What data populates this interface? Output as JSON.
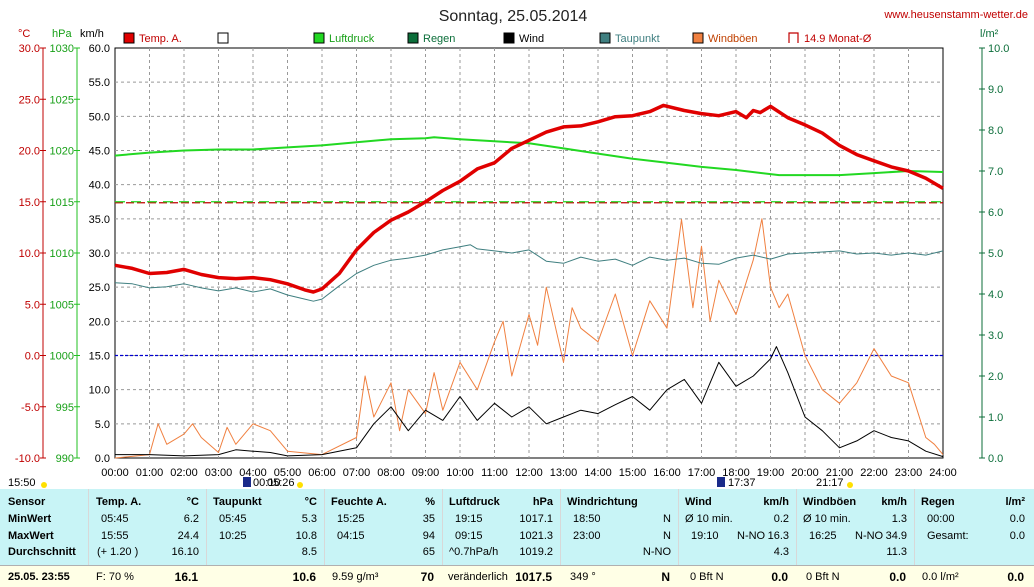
{
  "header": {
    "title": "Sonntag, 25.05.2014",
    "site": "www.heusenstamm-wetter.de"
  },
  "axes": {
    "left_units": [
      "°C",
      "hPa",
      "km/h"
    ],
    "right_unit": "l/m²",
    "temp_ticks": [
      "30.0",
      "25.0",
      "20.0",
      "15.0",
      "10.0",
      "5.0",
      "0.0",
      "-5.0",
      "-10.0"
    ],
    "pressure_ticks": [
      "1030",
      "1025",
      "1020",
      "1015",
      "1010",
      "1005",
      "1000",
      "995",
      "990"
    ],
    "wind_ticks": [
      "60.0",
      "55.0",
      "50.0",
      "45.0",
      "40.0",
      "35.0",
      "30.0",
      "25.0",
      "20.0",
      "15.0",
      "10.0",
      "5.0",
      "0.0"
    ],
    "rain_ticks": [
      "10.0",
      "9.0",
      "8.0",
      "7.0",
      "6.0",
      "5.0",
      "4.0",
      "3.0",
      "2.0",
      "1.0",
      "0.0"
    ],
    "time_ticks": [
      "00:00",
      "01:00",
      "02:00",
      "03:00",
      "04:00",
      "05:00",
      "06:00",
      "07:00",
      "08:00",
      "09:00",
      "10:00",
      "11:00",
      "12:00",
      "13:00",
      "14:00",
      "15:00",
      "16:00",
      "17:00",
      "18:00",
      "19:00",
      "20:00",
      "21:00",
      "22:00",
      "23:00",
      "24:00"
    ]
  },
  "legend": [
    {
      "label": "Temp. A.",
      "color": "#e00000",
      "shape": "box"
    },
    {
      "label": "",
      "color": "#ffffff",
      "shape": "box"
    },
    {
      "label": "Luftdruck",
      "color": "#22d822",
      "shape": "box"
    },
    {
      "label": "Regen",
      "color": "#0c6e3a",
      "shape": "box"
    },
    {
      "label": "Wind",
      "color": "#000000",
      "shape": "box"
    },
    {
      "label": "Taupunkt",
      "color": "#3f7f80",
      "shape": "box"
    },
    {
      "label": "Windböen",
      "color": "#f08040",
      "shape": "box"
    },
    {
      "label": "14.9 Monat-Ø",
      "color": "#c00000",
      "shape": "bracket"
    }
  ],
  "infobar": {
    "sunrise": "15:50",
    "moon_rise": "00:10",
    "moon_set": "05:26",
    "sunset_a": "17:37",
    "sunset_b": "21:17"
  },
  "stats": {
    "sensor": {
      "header": "Sensor",
      "rows": [
        "MinWert",
        "MaxWert",
        "Durchschnitt"
      ],
      "footer": "25.05. 23:55"
    },
    "temp": {
      "header": "Temp. A.",
      "unit": "°C",
      "min_time": "05:45",
      "min": "6.2",
      "max_time": "15:55",
      "max": "24.4",
      "avg_note": "(+ 1.20 )",
      "avg": "16.10",
      "current_note": "F: 70 %",
      "current": "16.1"
    },
    "dew": {
      "header": "Taupunkt",
      "unit": "°C",
      "min_time": "05:45",
      "min": "5.3",
      "max_time": "10:25",
      "max": "10.8",
      "avg": "8.5",
      "current": "10.6"
    },
    "humidity": {
      "header": "Feuchte A.",
      "unit": "%",
      "min_time": "15:25",
      "min": "35",
      "max_time": "04:15",
      "max": "94",
      "avg": "65",
      "current_note": "9.59 g/m³",
      "current": "70"
    },
    "pressure": {
      "header": "Luftdruck",
      "unit": "hPa",
      "min_time": "19:15",
      "min": "1017.1",
      "max_time": "09:15",
      "max": "1021.3",
      "avg_note": "^0.7hPa/h",
      "avg": "1019.2",
      "current_note": "veränderlich",
      "current": "1017.5"
    },
    "winddir": {
      "header": "Windrichtung",
      "min_time": "18:50",
      "min": "N",
      "max_time": "23:00",
      "max": "N",
      "avg": "N-NO",
      "current_note": "349 °",
      "current": "N"
    },
    "wind": {
      "header": "Wind",
      "unit": "km/h",
      "min_note": "Ø 10 min.",
      "min": "0.2",
      "max_time": "19:10",
      "max_dir": "N-NO",
      "max": "16.3",
      "avg": "4.3",
      "current_note": "0 Bft N",
      "current": "0.0"
    },
    "gust": {
      "header": "Windböen",
      "unit": "km/h",
      "min_note": "Ø 10 min.",
      "min": "1.3",
      "max_time": "16:25",
      "max_dir": "N-NO",
      "max": "34.9",
      "avg": "11.3",
      "current_note": "0 Bft N",
      "current": "0.0"
    },
    "rain": {
      "header": "Regen",
      "unit": "l/m²",
      "min_time": "00:00",
      "min": "0.0",
      "max_label": "Gesamt:",
      "max": "0.0",
      "current_note": "0.0 l/m²",
      "current": "0.0"
    }
  },
  "chart_data": {
    "type": "line",
    "title": "Sonntag, 25.05.2014",
    "x_unit": "hour of day",
    "xlim": [
      0,
      24
    ],
    "axes": {
      "temperature": {
        "unit": "°C",
        "range": [
          -10,
          30
        ]
      },
      "pressure": {
        "unit": "hPa",
        "range": [
          990,
          1030
        ]
      },
      "wind": {
        "unit": "km/h",
        "range": [
          0,
          60
        ]
      },
      "rain": {
        "unit": "l/m²",
        "range": [
          0,
          10
        ]
      }
    },
    "reference_lines": [
      {
        "name": "14.9 Monat-Ø",
        "axis": "temperature",
        "value": 14.9,
        "color": "#c00000"
      },
      {
        "axis": "temperature",
        "value": 0,
        "color": "#0000d0"
      },
      {
        "axis": "pressure",
        "value": 1015,
        "color": "#22d822"
      }
    ],
    "series": [
      {
        "name": "Temp. A.",
        "axis": "temperature",
        "color": "#e00000",
        "x": [
          0,
          0.5,
          1,
          1.5,
          2,
          2.5,
          3,
          3.5,
          4,
          4.5,
          5,
          5.5,
          5.75,
          6,
          6.5,
          7,
          7.5,
          8,
          8.5,
          9,
          9.5,
          10,
          10.5,
          11,
          11.5,
          12,
          12.5,
          13,
          13.5,
          14,
          14.5,
          15,
          15.5,
          15.9,
          16.5,
          17,
          17.5,
          18,
          18.3,
          18.5,
          18.7,
          19,
          19.5,
          20,
          20.5,
          21,
          21.5,
          22,
          22.5,
          23,
          23.5,
          24
        ],
        "y": [
          8.8,
          8.5,
          8.0,
          8.1,
          8.4,
          7.9,
          7.6,
          7.5,
          7.6,
          7.4,
          7.0,
          6.4,
          6.2,
          6.5,
          8.0,
          10.3,
          12.0,
          13.2,
          14.0,
          15.0,
          16.1,
          17.0,
          18.2,
          18.8,
          20.2,
          21.0,
          21.8,
          22.3,
          22.4,
          22.8,
          23.3,
          23.4,
          23.8,
          24.4,
          23.9,
          23.6,
          23.4,
          23.8,
          23.2,
          23.9,
          23.7,
          24.3,
          23.2,
          22.5,
          21.7,
          20.5,
          19.6,
          19.0,
          18.4,
          18.0,
          17.3,
          16.3
        ]
      },
      {
        "name": "Taupunkt",
        "axis": "temperature",
        "color": "#3f7f80",
        "x": [
          0,
          0.5,
          1,
          1.5,
          2,
          2.5,
          3,
          3.5,
          4,
          4.5,
          5,
          5.5,
          5.75,
          6,
          6.5,
          7,
          7.5,
          8,
          8.5,
          9,
          9.5,
          10,
          10.3,
          10.5,
          11,
          11.5,
          12,
          12.5,
          13,
          13.5,
          14,
          14.5,
          15,
          15.5,
          16,
          16.5,
          17,
          17.5,
          18,
          18.5,
          19,
          19.5,
          20,
          20.5,
          21,
          21.5,
          22,
          22.5,
          23,
          23.5,
          24
        ],
        "y": [
          7.1,
          7.0,
          6.6,
          6.7,
          7.0,
          6.6,
          6.3,
          6.6,
          6.2,
          6.5,
          5.9,
          5.5,
          5.3,
          5.5,
          6.8,
          8.0,
          8.8,
          9.3,
          9.5,
          9.8,
          10.3,
          10.6,
          10.8,
          10.4,
          10.2,
          10.0,
          10.3,
          9.2,
          9.0,
          9.6,
          9.2,
          9.4,
          8.8,
          9.6,
          9.3,
          9.5,
          9.0,
          8.9,
          9.5,
          9.8,
          9.4,
          9.9,
          10.0,
          10.1,
          10.2,
          9.9,
          10.0,
          9.8,
          10.0,
          9.8,
          10.2
        ]
      },
      {
        "name": "Luftdruck",
        "axis": "pressure",
        "color": "#22d822",
        "x": [
          0,
          1,
          2,
          3,
          4,
          5,
          6,
          7,
          8,
          9,
          9.25,
          10,
          11,
          12,
          13,
          14,
          15,
          16,
          17,
          18,
          19,
          19.25,
          20,
          21,
          22,
          23,
          24
        ],
        "y": [
          1019.5,
          1019.8,
          1020.0,
          1020.1,
          1020.1,
          1020.3,
          1020.5,
          1020.8,
          1021.1,
          1021.2,
          1021.3,
          1021.1,
          1020.9,
          1020.7,
          1020.2,
          1019.7,
          1019.2,
          1018.8,
          1018.4,
          1018.1,
          1017.7,
          1017.6,
          1017.6,
          1017.6,
          1017.8,
          1018.0,
          1017.9
        ]
      },
      {
        "name": "Wind",
        "axis": "wind",
        "color": "#000000",
        "x": [
          0,
          1,
          2,
          3,
          3.5,
          4,
          4.5,
          5,
          6,
          7,
          7.5,
          8,
          8.5,
          9,
          9.5,
          10,
          10.5,
          11,
          11.5,
          12,
          12.5,
          13,
          13.5,
          14,
          14.5,
          15,
          15.5,
          16,
          16.5,
          17,
          17.5,
          18,
          18.5,
          19,
          19.17,
          19.5,
          20,
          20.5,
          21,
          21.5,
          22,
          22.5,
          23,
          23.5,
          24
        ],
        "y": [
          0.5,
          0.5,
          0.3,
          0.5,
          1.2,
          1.0,
          0.8,
          0.3,
          0.5,
          1.5,
          5.0,
          7.5,
          4.0,
          7.0,
          5.5,
          9.0,
          5.5,
          8.0,
          6.0,
          7.5,
          5.0,
          6.0,
          7.0,
          6.5,
          7.8,
          9.0,
          7.0,
          10.0,
          11.5,
          8.0,
          14.0,
          10.5,
          12.0,
          14.5,
          16.3,
          12.5,
          6.0,
          4.0,
          1.5,
          2.5,
          4.0,
          3.0,
          2.5,
          1.0,
          0.2
        ]
      },
      {
        "name": "Windböen",
        "axis": "wind",
        "color": "#f08040",
        "x": [
          0,
          1,
          1.25,
          1.5,
          2,
          2.25,
          2.5,
          3,
          3.25,
          3.5,
          4,
          4.5,
          5,
          6,
          7,
          7.25,
          7.5,
          8,
          8.25,
          8.5,
          9,
          9.25,
          9.5,
          10,
          10.5,
          11,
          11.25,
          11.5,
          12,
          12.25,
          12.5,
          13,
          13.25,
          13.5,
          14,
          14.5,
          15,
          15.5,
          16,
          16.42,
          16.75,
          17,
          17.25,
          17.5,
          18,
          18.5,
          18.75,
          19,
          19.25,
          19.5,
          20,
          20.5,
          21,
          21.5,
          22,
          22.5,
          23,
          23.5,
          23.75,
          24
        ],
        "y": [
          0,
          0.5,
          5.0,
          2.0,
          3.5,
          5.0,
          3.0,
          0.8,
          4.5,
          2.0,
          5.0,
          4.0,
          1.0,
          0.5,
          3.0,
          12.0,
          6.0,
          11.0,
          4.0,
          10.0,
          6.5,
          12.5,
          7.0,
          14.0,
          10.0,
          17.0,
          20.0,
          12.0,
          21.0,
          16.5,
          25.0,
          14.0,
          22.0,
          19.0,
          17.0,
          24.0,
          15.0,
          23.0,
          19.0,
          34.9,
          22.0,
          31.0,
          20.0,
          26.0,
          21.0,
          29.0,
          35.0,
          25.0,
          22.0,
          24.0,
          15.0,
          10.0,
          8.0,
          11.0,
          16.0,
          12.0,
          11.0,
          3.0,
          2.0,
          0.5
        ]
      }
    ]
  }
}
